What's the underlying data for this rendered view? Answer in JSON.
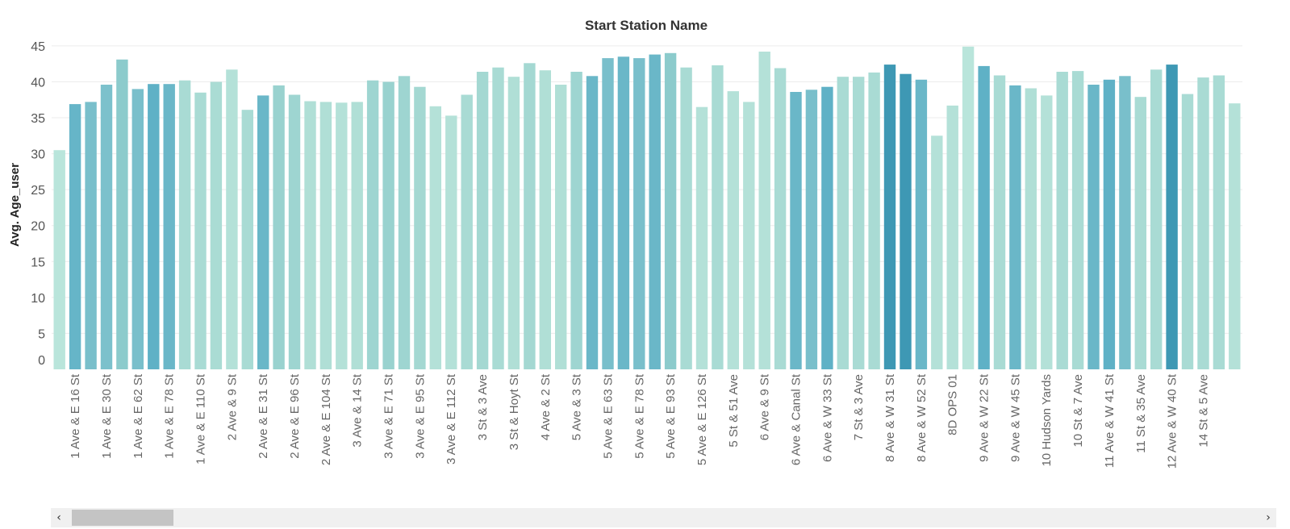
{
  "chart_data": {
    "type": "bar",
    "title": "Start Station Name",
    "ylabel": "Avg. Age_user",
    "xlabel": "",
    "ylim": [
      0,
      46
    ],
    "yticks": [
      0,
      5,
      10,
      15,
      20,
      25,
      30,
      35,
      40,
      45
    ],
    "grid": true,
    "legend": "none",
    "categories": [
      "",
      "1 Ave & E 16 St",
      "",
      "1 Ave & E 30 St",
      "",
      "1 Ave & E 62 St",
      "",
      "1 Ave & E 78 St",
      "",
      "1 Ave & E 110 St",
      "",
      "2 Ave & 9 St",
      "",
      "2 Ave & E 31 St",
      "",
      "2 Ave & E 96 St",
      "",
      "2 Ave & E 104 St",
      "",
      "3 Ave & 14 St",
      "",
      "3 Ave & E 71 St",
      "",
      "3 Ave & E 95 St",
      "",
      "3 Ave & E 112 St",
      "",
      "3 St & 3 Ave",
      "",
      "3 St & Hoyt St",
      "",
      "4 Ave & 2 St",
      "",
      "5 Ave & 3 St",
      "",
      "5 Ave & E 63 St",
      "",
      "5 Ave & E 78 St",
      "",
      "5 Ave & E 93 St",
      "",
      "5 Ave & E 126 St",
      "",
      "5 St & 51 Ave",
      "",
      "6 Ave & 9 St",
      "",
      "6 Ave & Canal St",
      "",
      "6 Ave & W 33 St",
      "",
      "7 St & 3 Ave",
      "",
      "8 Ave & W 31 St",
      "",
      "8 Ave & W 52 St",
      "",
      "8D OPS 01",
      "",
      "9 Ave & W 22 St",
      "",
      "9 Ave & W 45 St",
      "",
      "10 Hudson Yards",
      "",
      "10 St & 7 Ave",
      "",
      "11 Ave & W 41 St",
      "",
      "11 St & 35 Ave",
      "",
      "12 Ave & W 40 St",
      "",
      "14 St & 5 Ave",
      "",
      ""
    ],
    "values": [
      30.5,
      36.9,
      37.2,
      39.6,
      43.1,
      39.0,
      39.7,
      39.7,
      40.2,
      38.5,
      40.0,
      41.7,
      36.1,
      38.1,
      39.5,
      38.2,
      37.3,
      37.2,
      37.1,
      37.2,
      40.2,
      40.0,
      40.8,
      39.3,
      36.6,
      35.3,
      38.2,
      41.4,
      42.0,
      40.7,
      42.6,
      41.6,
      39.6,
      41.4,
      40.8,
      43.3,
      43.5,
      43.3,
      43.8,
      44.0,
      42.0,
      36.5,
      42.3,
      38.7,
      37.2,
      44.2,
      41.9,
      38.6,
      38.9,
      39.3,
      40.7,
      40.7,
      41.3,
      42.4,
      41.1,
      40.3,
      32.5,
      36.7,
      44.9,
      42.2,
      40.9,
      39.5,
      39.1,
      38.1,
      41.4,
      41.5,
      39.6,
      40.3,
      40.8,
      37.9,
      41.7,
      42.4,
      38.3,
      40.6,
      40.9,
      37.0
    ],
    "colors": [
      "#b9e5db",
      "#66b5c8",
      "#79bfcb",
      "#7cc1cc",
      "#8ccbcc",
      "#79bfcb",
      "#5fb1c6",
      "#6ab7c8",
      "#a9dbd4",
      "#a9dbd4",
      "#aadcd4",
      "#b4e1d8",
      "#a9dbd4",
      "#6ab7c8",
      "#99d2cf",
      "#9ed5d1",
      "#b0dfd6",
      "#b0dfd6",
      "#b4e1d8",
      "#b0dfd6",
      "#9ed5d1",
      "#99d2cf",
      "#9ed5d1",
      "#a4d8d2",
      "#b4e1d8",
      "#b4e1d8",
      "#a9dbd4",
      "#a4d8d2",
      "#a9dbd4",
      "#b0dfd6",
      "#a4d8d2",
      "#b0dfd6",
      "#b0dfd6",
      "#9ed5d1",
      "#6ab7c8",
      "#79bfcb",
      "#6ab7c8",
      "#79bfcb",
      "#6ab7c8",
      "#8ccbcc",
      "#a9dbd4",
      "#b4e1d8",
      "#a9dbd4",
      "#b4e1d8",
      "#b4e1d8",
      "#b4e1d8",
      "#a9dbd4",
      "#6ab7c8",
      "#79bfcb",
      "#5fb1c6",
      "#a9dbd4",
      "#a9dbd4",
      "#a9dbd4",
      "#3e98b4",
      "#3e98b4",
      "#6ab7c8",
      "#b4e1d8",
      "#b4e1d8",
      "#b9e5db",
      "#5fb1c6",
      "#a9dbd4",
      "#6ab7c8",
      "#b0dfd6",
      "#b4e1d8",
      "#a9dbd4",
      "#a9dbd4",
      "#6ab7c8",
      "#5fb1c6",
      "#79bfcb",
      "#a9dbd4",
      "#a9dbd4",
      "#3e98b4",
      "#a9dbd4",
      "#a9dbd4",
      "#a9dbd4",
      "#b4e1d8"
    ]
  },
  "scrollbar": {
    "left_arrow": "‹",
    "right_arrow": "›"
  }
}
